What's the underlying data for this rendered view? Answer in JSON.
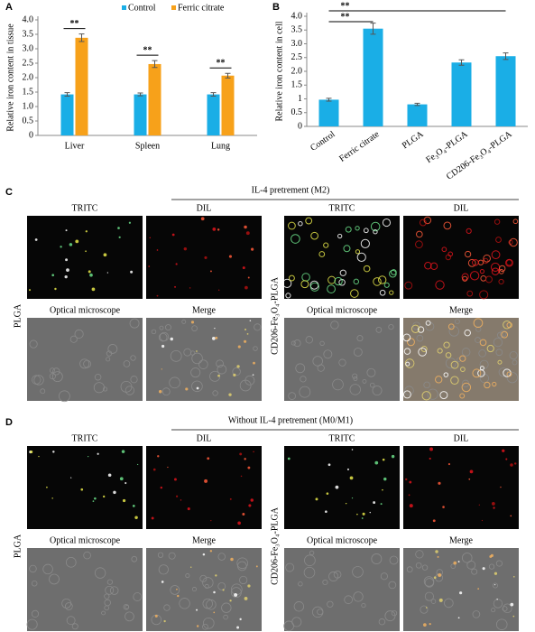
{
  "chart_data": [
    {
      "type": "bar",
      "panel_label": "A",
      "y_label": "Relative iron content in tissue",
      "categories": [
        "Liver",
        "Spleen",
        "Lung"
      ],
      "series": [
        {
          "name": "Control",
          "color": "#1aaee6",
          "values": [
            1.42,
            1.42,
            1.42
          ],
          "errors": [
            0.06,
            0.05,
            0.06
          ]
        },
        {
          "name": "Ferric citrate",
          "color": "#f7a11a",
          "values": [
            3.38,
            2.47,
            2.07
          ],
          "errors": [
            0.13,
            0.12,
            0.08
          ]
        }
      ],
      "ylim": [
        0,
        4.0
      ],
      "yticks": [
        0,
        0.5,
        {
          "value": 1,
          "label": "1.0"
        },
        1.5,
        {
          "value": 2,
          "label": "2.0"
        },
        2.5,
        {
          "value": 3,
          "label": "3.0"
        },
        3.5,
        {
          "value": 4,
          "label": "4.0"
        }
      ],
      "legend": "top-right",
      "grid": false,
      "annotations": [
        "**",
        "**",
        "**"
      ]
    },
    {
      "type": "bar",
      "panel_label": "B",
      "y_label": "Relative iron content in cell",
      "categories": [
        "Control",
        "Ferric citrate",
        "PLGA",
        "Fe₃O₄-PLGA",
        "CD206-Fe₃O₄-PLGA"
      ],
      "series": [
        {
          "name": null,
          "color": "#1aaee6",
          "values": [
            0.97,
            3.55,
            0.8,
            2.32,
            2.55
          ],
          "errors": [
            0.05,
            0.2,
            0.04,
            0.1,
            0.12
          ]
        }
      ],
      "ylim": [
        0,
        4.0
      ],
      "yticks": [
        0,
        0.5,
        1,
        1.5,
        {
          "value": 2,
          "label": "2.0"
        },
        2.5,
        {
          "value": 3,
          "label": "3.0"
        },
        3.5,
        {
          "value": 4,
          "label": "4.0"
        }
      ],
      "grid": false,
      "annotations": [
        "**",
        "**"
      ]
    }
  ],
  "panels": [
    {
      "letter": "C",
      "title": "IL-4 pretrement (M2)",
      "groups": [
        {
          "label": "PLGA",
          "images": [
            "TRITC",
            "DIL",
            "Optical microscope",
            "Merge"
          ]
        },
        {
          "label": "CD206-Fe₃O₄-PLGA",
          "images": [
            "TRITC",
            "DIL",
            "Optical microscope",
            "Merge"
          ]
        }
      ]
    },
    {
      "letter": "D",
      "title": "Without IL-4 pretrement (M0/M1)",
      "groups": [
        {
          "label": "PLGA",
          "images": [
            "TRITC",
            "DIL",
            "Optical microscope",
            "Merge"
          ]
        },
        {
          "label": "CD206-Fe₃O₄-PLGA",
          "images": [
            "TRITC",
            "DIL",
            "Optical microscope",
            "Merge"
          ]
        }
      ]
    }
  ]
}
